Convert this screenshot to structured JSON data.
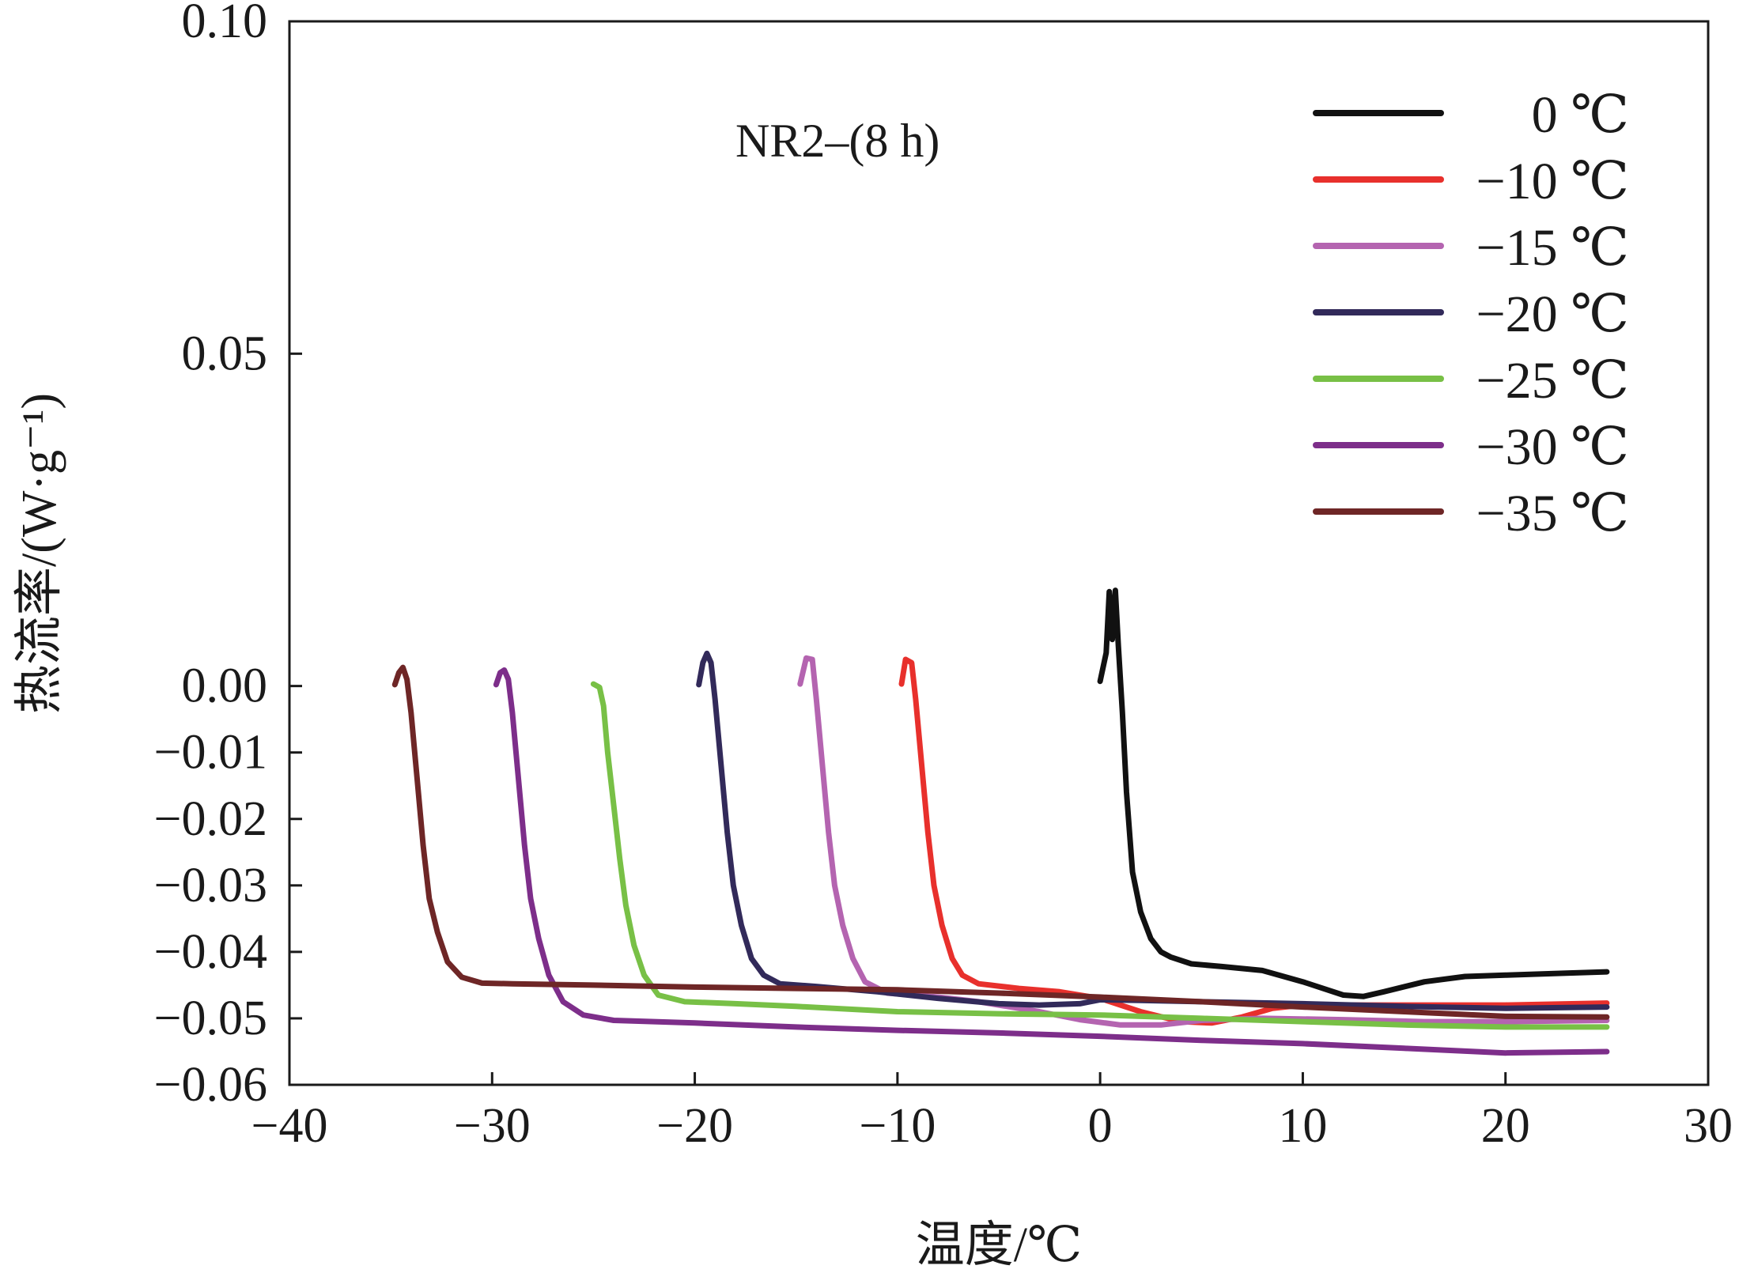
{
  "chart_data": {
    "type": "line",
    "title": "",
    "annotation": "NR2–(8 h)",
    "xlabel": "温度/℃",
    "ylabel": "热流率/(W·g⁻¹)",
    "xlim": [
      -40,
      30
    ],
    "ylim": [
      -0.06,
      0.1
    ],
    "x_ticks": [
      -40,
      -30,
      -20,
      -10,
      0,
      10,
      20,
      30
    ],
    "x_tick_labels": [
      "−40",
      "−30",
      "−20",
      "−10",
      "0",
      "10",
      "20",
      "30"
    ],
    "y_ticks": [
      0.1,
      0.05,
      0.0,
      -0.01,
      -0.02,
      -0.03,
      -0.04,
      -0.05,
      -0.06
    ],
    "y_tick_labels": [
      "0.10",
      "0.05",
      "0.00",
      "−0.01",
      "−0.02",
      "−0.03",
      "−0.04",
      "−0.05",
      "−0.06"
    ],
    "grid": false,
    "legend_position": "top-right",
    "series": [
      {
        "name": "0 ℃",
        "color": "#111111",
        "points": [
          [
            0,
            0.0007
          ],
          [
            0.3,
            0.005
          ],
          [
            0.45,
            0.0142
          ],
          [
            0.6,
            0.007
          ],
          [
            0.75,
            0.0144
          ],
          [
            0.9,
            0.006
          ],
          [
            1.1,
            -0.004
          ],
          [
            1.3,
            -0.016
          ],
          [
            1.6,
            -0.028
          ],
          [
            2.0,
            -0.034
          ],
          [
            2.5,
            -0.038
          ],
          [
            3.0,
            -0.04
          ],
          [
            3.5,
            -0.0408
          ],
          [
            4.5,
            -0.0418
          ],
          [
            6,
            -0.0422
          ],
          [
            8,
            -0.0428
          ],
          [
            10,
            -0.0445
          ],
          [
            12,
            -0.0465
          ],
          [
            13,
            -0.0467
          ],
          [
            14,
            -0.046
          ],
          [
            16,
            -0.0445
          ],
          [
            18,
            -0.0437
          ],
          [
            20,
            -0.0435
          ],
          [
            23,
            -0.0432
          ],
          [
            25,
            -0.043
          ]
        ]
      },
      {
        "name": "−10 ℃",
        "color": "#e8302c",
        "points": [
          [
            -9.8,
            0.0003
          ],
          [
            -9.6,
            0.004
          ],
          [
            -9.3,
            0.0035
          ],
          [
            -9.1,
            -0.002
          ],
          [
            -8.8,
            -0.012
          ],
          [
            -8.5,
            -0.022
          ],
          [
            -8.2,
            -0.03
          ],
          [
            -7.8,
            -0.036
          ],
          [
            -7.3,
            -0.041
          ],
          [
            -6.8,
            -0.0435
          ],
          [
            -6,
            -0.0448
          ],
          [
            -4,
            -0.0455
          ],
          [
            -2,
            -0.046
          ],
          [
            0,
            -0.047
          ],
          [
            2,
            -0.049
          ],
          [
            4,
            -0.0505
          ],
          [
            5.5,
            -0.0507
          ],
          [
            7,
            -0.0498
          ],
          [
            8.5,
            -0.0485
          ],
          [
            10,
            -0.048
          ],
          [
            15,
            -0.048
          ],
          [
            20,
            -0.048
          ],
          [
            25,
            -0.0477
          ]
        ]
      },
      {
        "name": "−15 ℃",
        "color": "#b464b0",
        "points": [
          [
            -14.8,
            0.0003
          ],
          [
            -14.5,
            0.0042
          ],
          [
            -14.2,
            0.004
          ],
          [
            -14.0,
            -0.002
          ],
          [
            -13.7,
            -0.012
          ],
          [
            -13.4,
            -0.022
          ],
          [
            -13.1,
            -0.03
          ],
          [
            -12.7,
            -0.036
          ],
          [
            -12.2,
            -0.041
          ],
          [
            -11.6,
            -0.0445
          ],
          [
            -10.5,
            -0.0462
          ],
          [
            -8,
            -0.0468
          ],
          [
            -6,
            -0.0475
          ],
          [
            -3,
            -0.049
          ],
          [
            -1,
            -0.0502
          ],
          [
            1,
            -0.051
          ],
          [
            3,
            -0.051
          ],
          [
            5,
            -0.0503
          ],
          [
            8,
            -0.05
          ],
          [
            12,
            -0.0502
          ],
          [
            16,
            -0.0505
          ],
          [
            20,
            -0.0505
          ],
          [
            25,
            -0.0503
          ]
        ]
      },
      {
        "name": "−20 ℃",
        "color": "#322a5a",
        "points": [
          [
            -19.8,
            0.0002
          ],
          [
            -19.6,
            0.0035
          ],
          [
            -19.4,
            0.0049
          ],
          [
            -19.2,
            0.0035
          ],
          [
            -19.0,
            -0.002
          ],
          [
            -18.7,
            -0.012
          ],
          [
            -18.4,
            -0.022
          ],
          [
            -18.1,
            -0.03
          ],
          [
            -17.7,
            -0.036
          ],
          [
            -17.2,
            -0.041
          ],
          [
            -16.6,
            -0.0435
          ],
          [
            -15.8,
            -0.0448
          ],
          [
            -14,
            -0.0452
          ],
          [
            -11,
            -0.046
          ],
          [
            -8,
            -0.047
          ],
          [
            -5,
            -0.0478
          ],
          [
            -3,
            -0.048
          ],
          [
            -1,
            -0.0478
          ],
          [
            0,
            -0.0472
          ],
          [
            2,
            -0.0473
          ],
          [
            5,
            -0.0475
          ],
          [
            10,
            -0.0478
          ],
          [
            15,
            -0.0482
          ],
          [
            20,
            -0.0485
          ],
          [
            25,
            -0.0483
          ]
        ]
      },
      {
        "name": "−25 ℃",
        "color": "#78c046",
        "points": [
          [
            -25.0,
            0.0003
          ],
          [
            -24.7,
            -0.0002
          ],
          [
            -24.5,
            -0.003
          ],
          [
            -24.3,
            -0.01
          ],
          [
            -24.0,
            -0.018
          ],
          [
            -23.7,
            -0.026
          ],
          [
            -23.4,
            -0.033
          ],
          [
            -23.0,
            -0.039
          ],
          [
            -22.5,
            -0.0435
          ],
          [
            -21.8,
            -0.0465
          ],
          [
            -20.5,
            -0.0475
          ],
          [
            -18,
            -0.0478
          ],
          [
            -15,
            -0.0482
          ],
          [
            -10,
            -0.049
          ],
          [
            -5,
            -0.0493
          ],
          [
            0,
            -0.0495
          ],
          [
            5,
            -0.05
          ],
          [
            10,
            -0.0505
          ],
          [
            15,
            -0.051
          ],
          [
            20,
            -0.0513
          ],
          [
            25,
            -0.0513
          ]
        ]
      },
      {
        "name": "−30 ℃",
        "color": "#7d2e8a",
        "points": [
          [
            -29.8,
            0.0002
          ],
          [
            -29.6,
            0.002
          ],
          [
            -29.4,
            0.0024
          ],
          [
            -29.2,
            0.001
          ],
          [
            -29.0,
            -0.004
          ],
          [
            -28.7,
            -0.014
          ],
          [
            -28.4,
            -0.024
          ],
          [
            -28.1,
            -0.032
          ],
          [
            -27.7,
            -0.038
          ],
          [
            -27.2,
            -0.0435
          ],
          [
            -26.5,
            -0.0475
          ],
          [
            -25.5,
            -0.0495
          ],
          [
            -24,
            -0.0503
          ],
          [
            -20,
            -0.0507
          ],
          [
            -15,
            -0.0513
          ],
          [
            -10,
            -0.0518
          ],
          [
            -5,
            -0.0522
          ],
          [
            0,
            -0.0527
          ],
          [
            5,
            -0.0533
          ],
          [
            10,
            -0.0538
          ],
          [
            15,
            -0.0545
          ],
          [
            20,
            -0.0552
          ],
          [
            25,
            -0.055
          ]
        ]
      },
      {
        "name": "−35 ℃",
        "color": "#6e2626",
        "points": [
          [
            -34.8,
            0.0002
          ],
          [
            -34.6,
            0.002
          ],
          [
            -34.4,
            0.0028
          ],
          [
            -34.2,
            0.001
          ],
          [
            -34.0,
            -0.004
          ],
          [
            -33.7,
            -0.014
          ],
          [
            -33.4,
            -0.024
          ],
          [
            -33.1,
            -0.032
          ],
          [
            -32.7,
            -0.037
          ],
          [
            -32.2,
            -0.0415
          ],
          [
            -31.5,
            -0.0438
          ],
          [
            -30.5,
            -0.0447
          ],
          [
            -29,
            -0.0448
          ],
          [
            -25,
            -0.045
          ],
          [
            -20,
            -0.0453
          ],
          [
            -15,
            -0.0455
          ],
          [
            -10,
            -0.0457
          ],
          [
            -5,
            -0.0462
          ],
          [
            0,
            -0.0468
          ],
          [
            5,
            -0.0475
          ],
          [
            10,
            -0.0483
          ],
          [
            15,
            -0.049
          ],
          [
            20,
            -0.0497
          ],
          [
            25,
            -0.0498
          ]
        ]
      }
    ]
  }
}
